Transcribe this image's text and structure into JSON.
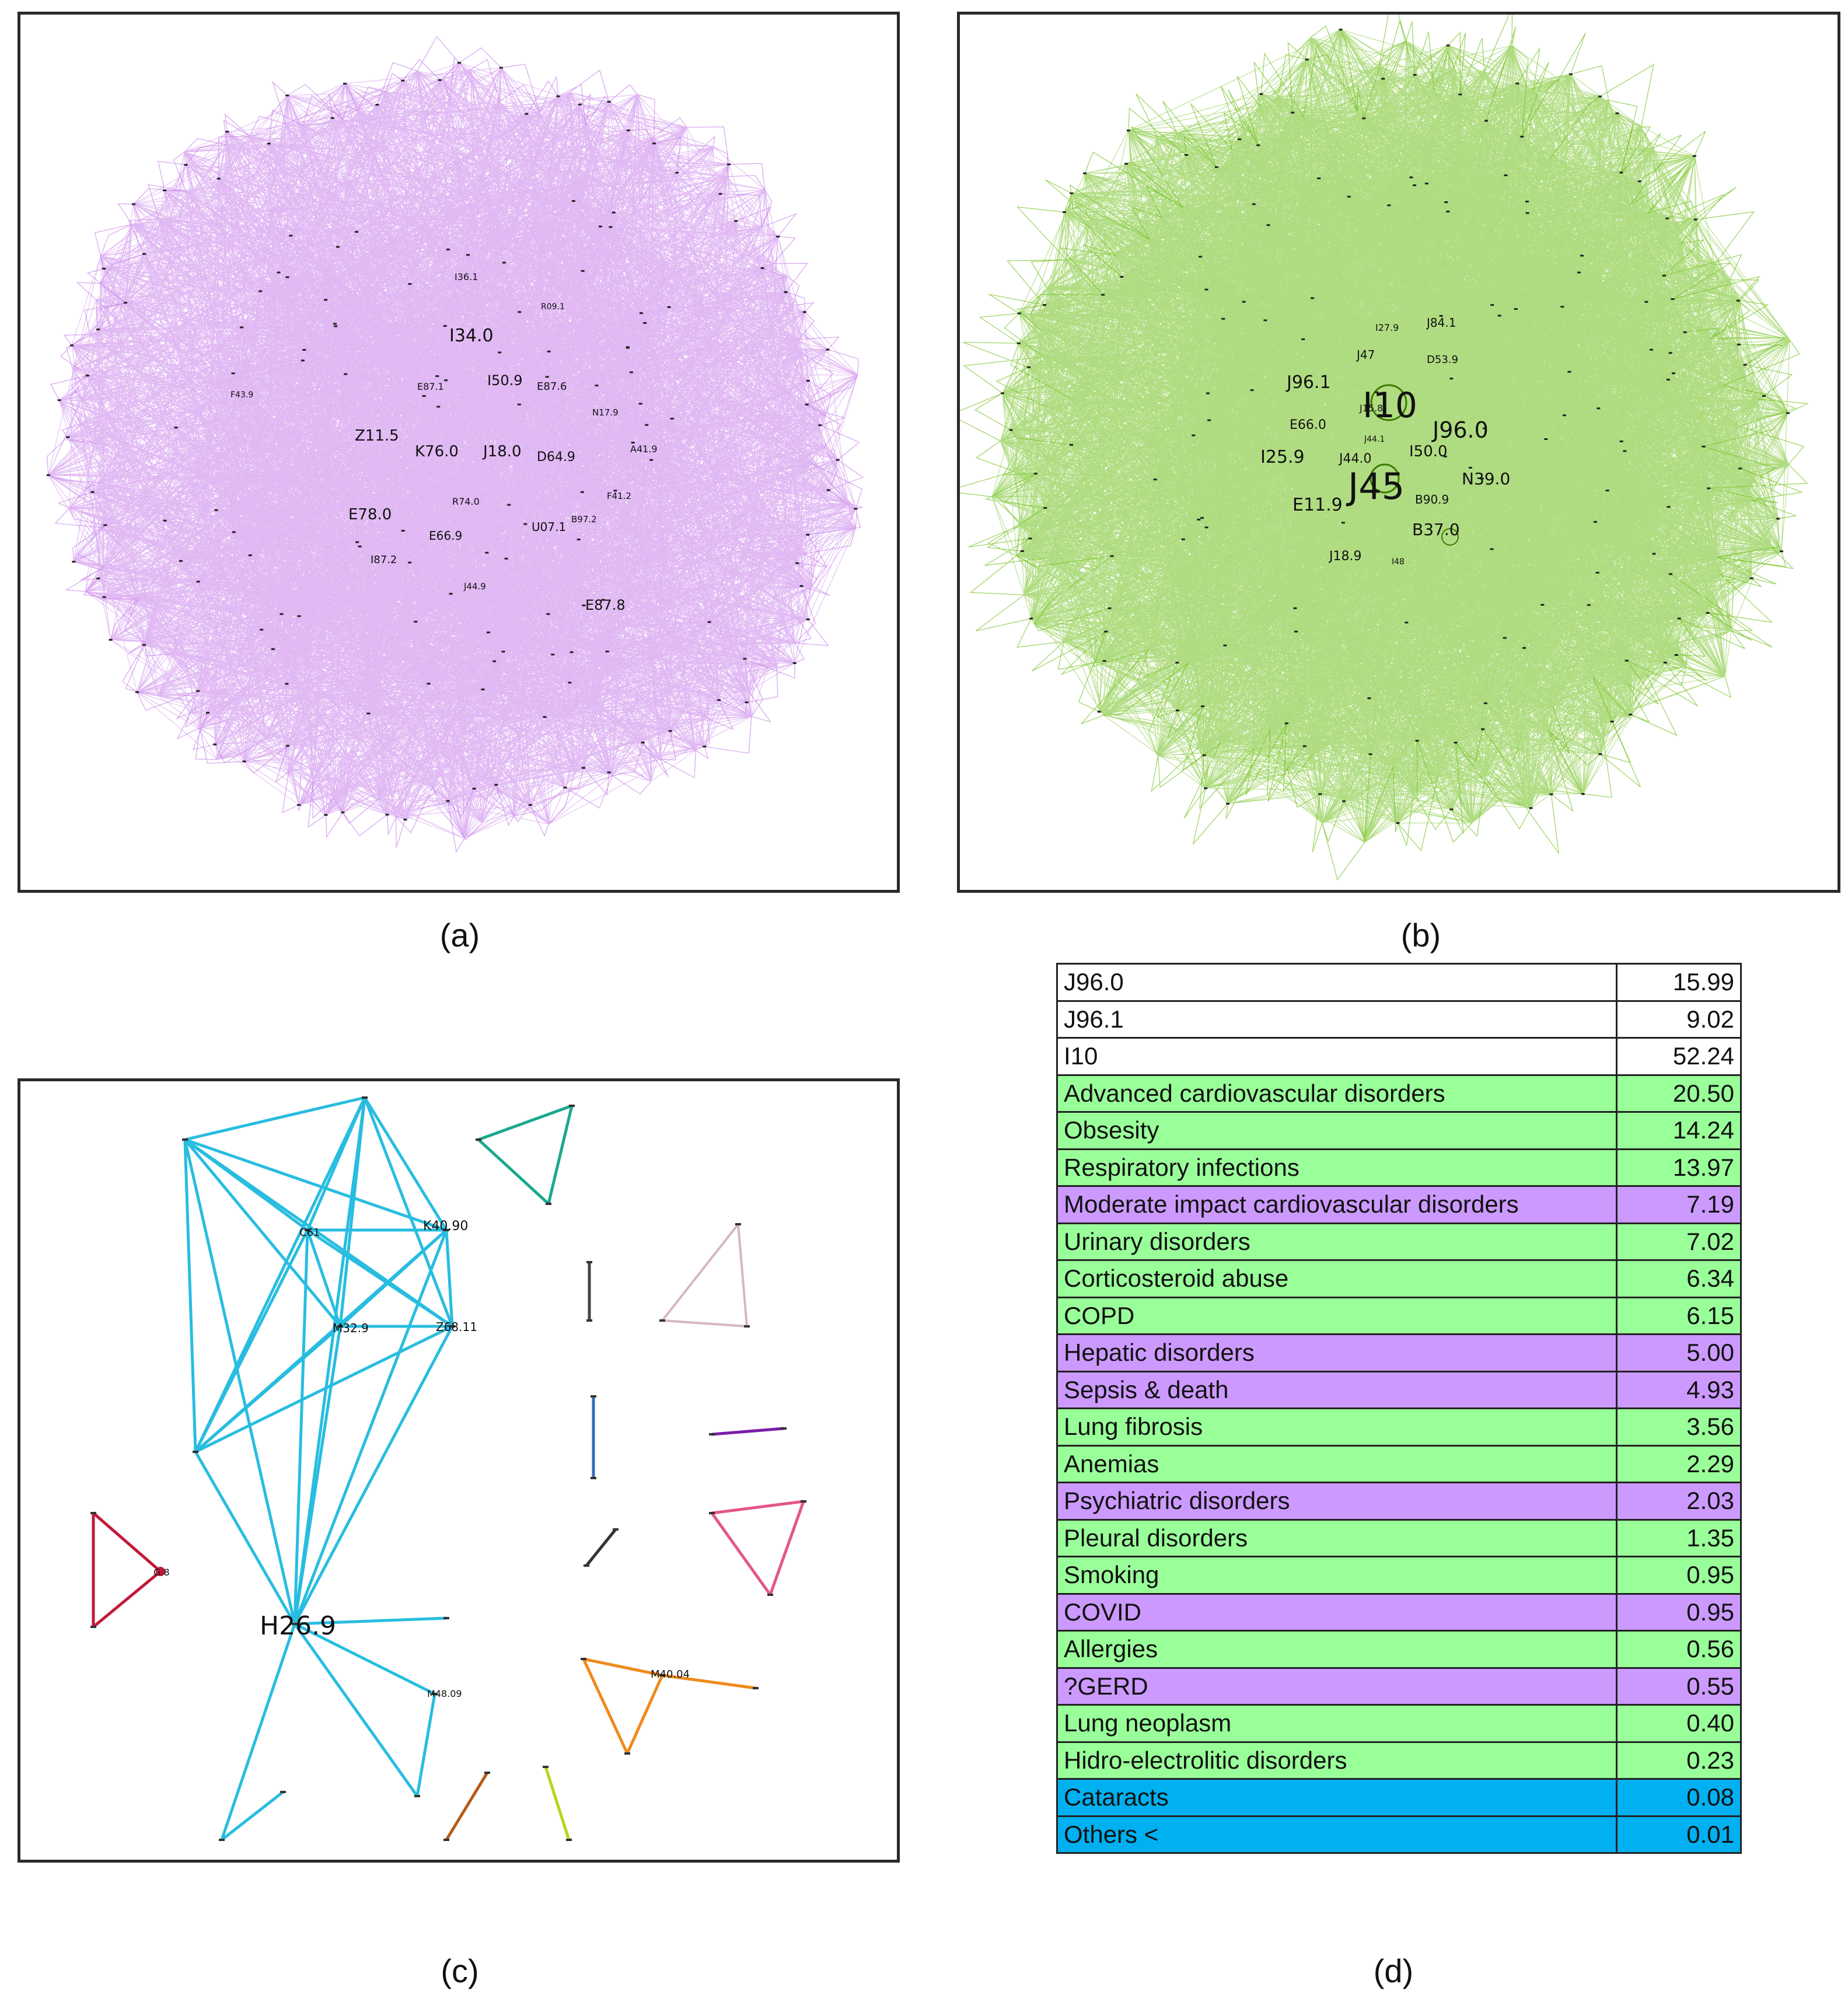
{
  "captions": {
    "a": "(a)",
    "b": "(b)",
    "c": "(c)",
    "d": "(d)"
  },
  "colors": {
    "panel_a_edges": "#c77dea",
    "panel_b_edges": "#6fc01a",
    "row_white": "#ffffff",
    "row_green": "#99ff99",
    "row_purple": "#cc99ff",
    "row_blue": "#00b0f0"
  },
  "panel_a": {
    "labels": [
      "I36.1",
      "I34.0",
      "R09.1",
      "I50.9",
      "E87.6",
      "E87.1",
      "N17.9",
      "Z11.5",
      "K76.0",
      "J18.0",
      "D64.9",
      "A41.9",
      "R74.0",
      "F41.2",
      "E78.0",
      "B97.2",
      "E66.9",
      "U07.1",
      "I87.2",
      "J44.9",
      "E87.8",
      "F43.9"
    ]
  },
  "panel_b": {
    "labels": [
      "J84.1",
      "I27.9",
      "J47",
      "D53.9",
      "J96.1",
      "I10",
      "J15.8",
      "E66.0",
      "J96.0",
      "I25.9",
      "J44.1",
      "J44.0",
      "I50.0",
      "J45",
      "N39.0",
      "E11.9",
      "B90.9",
      "B37.0",
      "J18.9",
      "I48"
    ]
  },
  "panel_c": {
    "labels": [
      "C61",
      "K40.90",
      "M32.9",
      "Z68.11",
      "H26.9",
      "M48.09",
      "M40.04",
      "G.8"
    ]
  },
  "table_d": {
    "rows": [
      {
        "label": "J96.0",
        "value": "15.99",
        "group": "white"
      },
      {
        "label": "J96.1",
        "value": "9.02",
        "group": "white"
      },
      {
        "label": "I10",
        "value": "52.24",
        "group": "white"
      },
      {
        "label": "Advanced cardiovascular disorders",
        "value": "20.50",
        "group": "green"
      },
      {
        "label": "Obsesity",
        "value": "14.24",
        "group": "green"
      },
      {
        "label": "Respiratory infections",
        "value": "13.97",
        "group": "green"
      },
      {
        "label": "Moderate impact cardiovascular disorders",
        "value": "7.19",
        "group": "purple"
      },
      {
        "label": "Urinary disorders",
        "value": "7.02",
        "group": "green"
      },
      {
        "label": "Corticosteroid abuse",
        "value": "6.34",
        "group": "green"
      },
      {
        "label": "COPD",
        "value": "6.15",
        "group": "green"
      },
      {
        "label": "Hepatic disorders",
        "value": "5.00",
        "group": "purple"
      },
      {
        "label": "Sepsis & death",
        "value": "4.93",
        "group": "purple"
      },
      {
        "label": "Lung fibrosis",
        "value": "3.56",
        "group": "green"
      },
      {
        "label": "Anemias",
        "value": "2.29",
        "group": "green"
      },
      {
        "label": "Psychiatric disorders",
        "value": "2.03",
        "group": "purple"
      },
      {
        "label": "Pleural disorders",
        "value": "1.35",
        "group": "green"
      },
      {
        "label": "Smoking",
        "value": "0.95",
        "group": "green"
      },
      {
        "label": "COVID",
        "value": "0.95",
        "group": "purple"
      },
      {
        "label": "Allergies",
        "value": "0.56",
        "group": "green"
      },
      {
        "label": "?GERD",
        "value": "0.55",
        "group": "purple"
      },
      {
        "label": "Lung neoplasm",
        "value": "0.40",
        "group": "green"
      },
      {
        "label": "Hidro-electrolitic disorders",
        "value": "0.23",
        "group": "green"
      },
      {
        "label": "Cataracts",
        "value": "0.08",
        "group": "blue"
      },
      {
        "label": "Others <",
        "value": "0.01",
        "group": "blue"
      }
    ]
  }
}
